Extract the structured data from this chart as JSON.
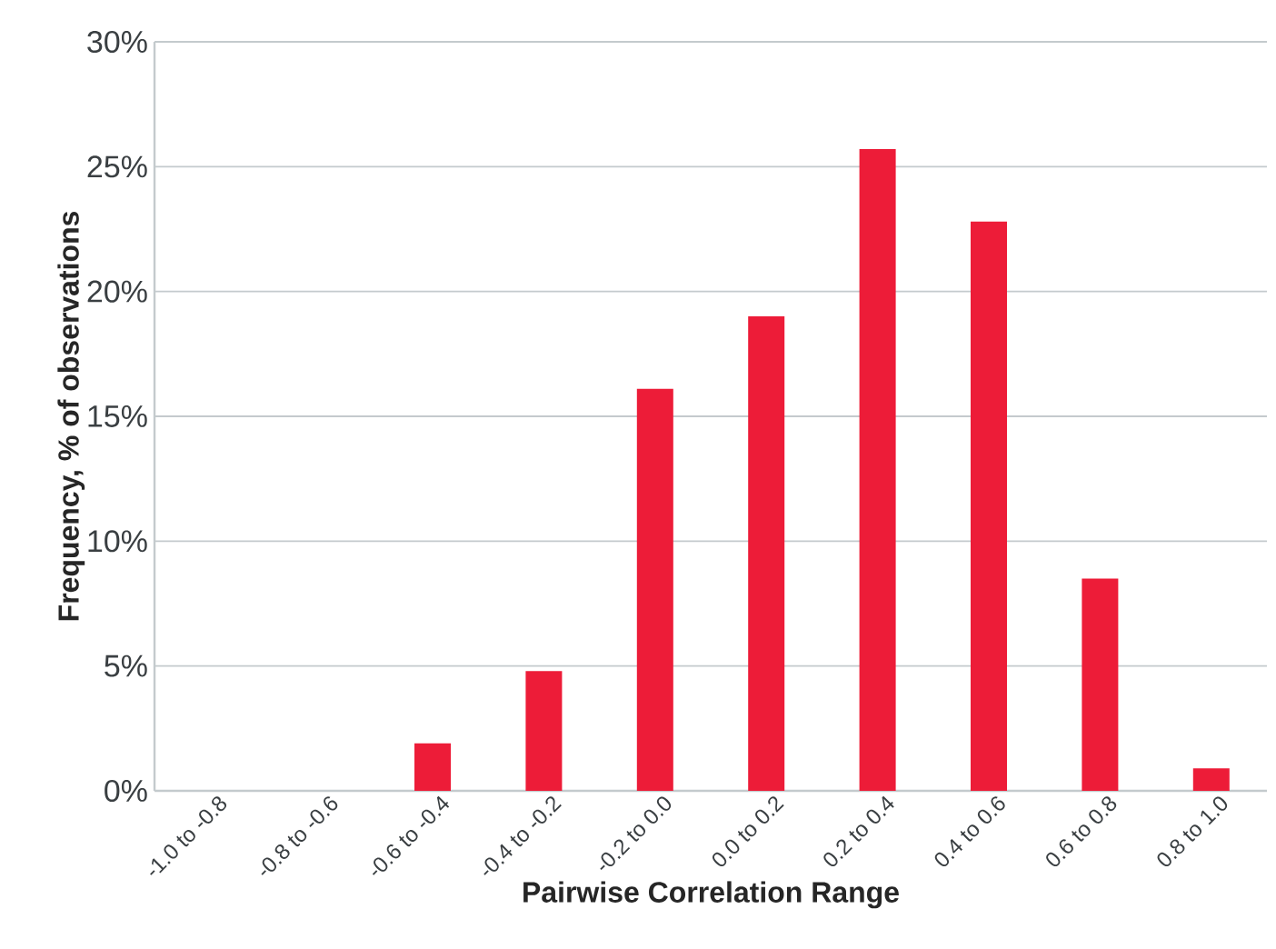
{
  "chart_data": {
    "type": "bar",
    "xlabel": "Pairwise Correlation Range",
    "ylabel": "Frequency, % of observations",
    "categories": [
      "-1.0 to -0.8",
      "-0.8 to -0.6",
      "-0.6 to -0.4",
      "-0.4 to -0.2",
      "-0.2 to 0.0",
      "0.0 to 0.2",
      "0.2 to 0.4",
      "0.4 to 0.6",
      "0.6 to 0.8",
      "0.8 to 1.0"
    ],
    "values": [
      0,
      0,
      1.9,
      4.8,
      16.1,
      19.0,
      25.7,
      22.8,
      8.5,
      0.9
    ],
    "color": "#ed1c38",
    "ylim": [
      0,
      30
    ],
    "yticks": [
      {
        "value": 0,
        "label": "0%"
      },
      {
        "value": 5,
        "label": "5%"
      },
      {
        "value": 10,
        "label": "10%"
      },
      {
        "value": 15,
        "label": "15%"
      },
      {
        "value": 20,
        "label": "20%"
      },
      {
        "value": 25,
        "label": "25%"
      },
      {
        "value": 30,
        "label": "30%"
      }
    ],
    "grid": "y"
  }
}
